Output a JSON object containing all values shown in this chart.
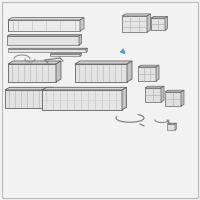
{
  "background_color": "#f2f2f2",
  "border_color": "#bbbbbb",
  "line_color": "#606060",
  "highlight_color": "#4a9fd4",
  "fill_light": "#ebebeb",
  "fill_mid": "#d8d8d8",
  "fill_dark": "#c8c8c8",
  "figsize": [
    2.0,
    2.0
  ],
  "dpi": 100
}
